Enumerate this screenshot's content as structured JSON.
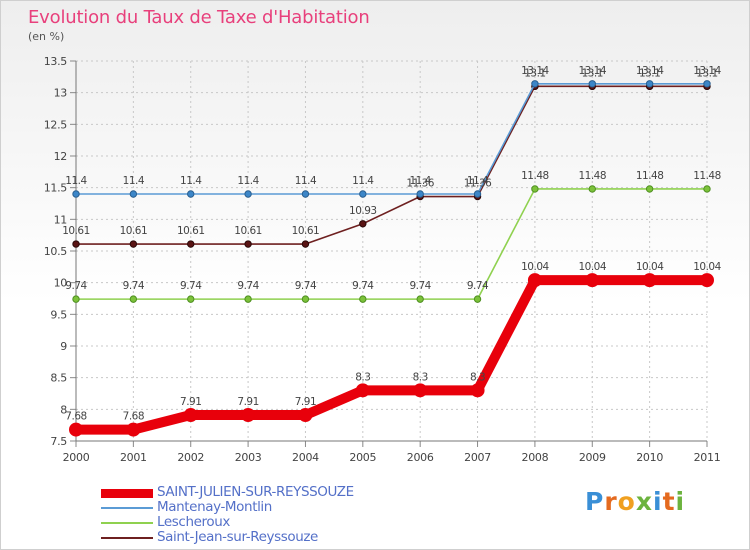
{
  "title": "Evolution du Taux de Taxe d'Habitation",
  "unit": "(en %)",
  "logo": {
    "letters": [
      "P",
      "r",
      "o",
      "x",
      "i",
      "t",
      "i"
    ],
    "colors": [
      "#3a8fd6",
      "#e46a1f",
      "#f0a020",
      "#6cb33e",
      "#3a8fd6",
      "#e46a1f",
      "#6cb33e"
    ]
  },
  "chart_data": {
    "type": "line",
    "title": "Evolution du Taux de Taxe d'Habitation",
    "xlabel": "",
    "ylabel": "(en %)",
    "x": [
      "2000",
      "2001",
      "2002",
      "2003",
      "2004",
      "2005",
      "2006",
      "2007",
      "2008",
      "2009",
      "2010",
      "2011"
    ],
    "ylim": [
      7.5,
      13.5
    ],
    "yticks": [
      "7.5",
      "8",
      "8.5",
      "9",
      "9.5",
      "10",
      "10.5",
      "11",
      "11.5",
      "12",
      "12.5",
      "13",
      "13.5"
    ],
    "grid": true,
    "legend_position": "bottom-left",
    "series": [
      {
        "name": "SAINT-JULIEN-SUR-REYSSOUZE",
        "color": "#e8000b",
        "values": [
          7.68,
          7.68,
          7.91,
          7.91,
          7.91,
          8.3,
          8.3,
          8.3,
          10.04,
          10.04,
          10.04,
          10.04
        ],
        "labels": [
          "7.68",
          "7.68",
          "7.91",
          "7.91",
          "7.91",
          "8.3",
          "8.3",
          "8.3",
          "10.04",
          "10.04",
          "10.04",
          "10.04"
        ]
      },
      {
        "name": "Mantenay-Montlin",
        "color": "#5b9bd5",
        "values": [
          11.4,
          11.4,
          11.4,
          11.4,
          11.4,
          11.4,
          11.4,
          11.4,
          13.14,
          13.14,
          13.14,
          13.14
        ],
        "labels": [
          "11.4",
          "11.4",
          "11.4",
          "11.4",
          "11.4",
          "11.4",
          "11.4",
          "11.4",
          "13.14",
          "13.14",
          "13.14",
          "13.14"
        ]
      },
      {
        "name": "Lescheroux",
        "color": "#8fd14f",
        "values": [
          9.74,
          9.74,
          9.74,
          9.74,
          9.74,
          9.74,
          9.74,
          9.74,
          11.48,
          11.48,
          11.48,
          11.48
        ],
        "labels": [
          "9.74",
          "9.74",
          "9.74",
          "9.74",
          "9.74",
          "9.74",
          "9.74",
          "9.74",
          "11.48",
          "11.48",
          "11.48",
          "11.48"
        ]
      },
      {
        "name": "Saint-Jean-sur-Reyssouze",
        "color": "#6e2020",
        "values": [
          10.61,
          10.61,
          10.61,
          10.61,
          10.61,
          10.93,
          11.36,
          11.36,
          13.1,
          13.1,
          13.1,
          13.1
        ],
        "labels": [
          "10.61",
          "10.61",
          "10.61",
          "10.61",
          "10.61",
          "10.93",
          "11.36",
          "11.36",
          "13.1",
          "13.1",
          "13.1",
          "13.1"
        ]
      }
    ]
  }
}
